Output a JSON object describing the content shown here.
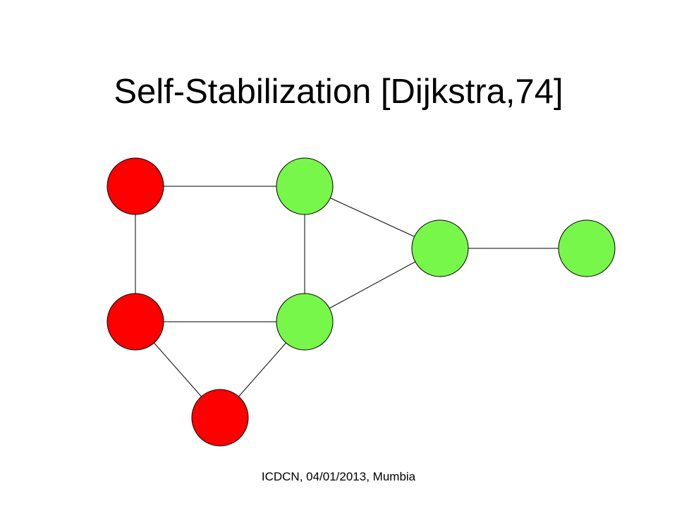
{
  "slide": {
    "title": "Self-Stabilization [Dijkstra,74]",
    "footer": "ICDCN, 04/01/2013, Mumbia"
  },
  "colors": {
    "red_node": "#ff0000",
    "green_node": "#77f74a",
    "edge": "#000000",
    "background": "#ffffff"
  },
  "graph": {
    "nodes": [
      {
        "id": "n1",
        "state": "red"
      },
      {
        "id": "n2",
        "state": "green"
      },
      {
        "id": "n3",
        "state": "green"
      },
      {
        "id": "n4",
        "state": "green"
      },
      {
        "id": "n5",
        "state": "red"
      },
      {
        "id": "n6",
        "state": "green"
      },
      {
        "id": "n7",
        "state": "red"
      }
    ],
    "edges": [
      [
        "n1",
        "n2"
      ],
      [
        "n1",
        "n5"
      ],
      [
        "n2",
        "n6"
      ],
      [
        "n2",
        "n3"
      ],
      [
        "n3",
        "n4"
      ],
      [
        "n5",
        "n6"
      ],
      [
        "n6",
        "n3"
      ],
      [
        "n5",
        "n7"
      ],
      [
        "n6",
        "n7"
      ]
    ]
  }
}
